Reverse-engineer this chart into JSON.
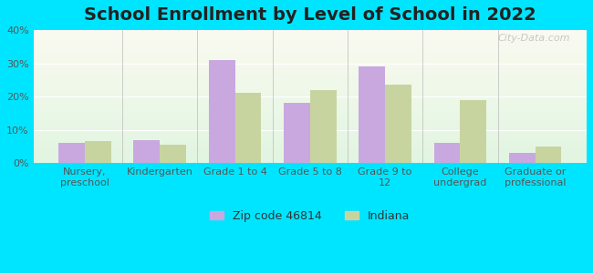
{
  "title": "School Enrollment by Level of School in 2022",
  "categories": [
    "Nursery,\npreschool",
    "Kindergarten",
    "Grade 1 to 4",
    "Grade 5 to 8",
    "Grade 9 to\n12",
    "College\nundergrad",
    "Graduate or\nprofessional"
  ],
  "zip_values": [
    6.0,
    7.0,
    31.0,
    18.0,
    29.0,
    6.0,
    3.0
  ],
  "indiana_values": [
    6.5,
    5.5,
    21.0,
    22.0,
    23.5,
    19.0,
    5.0
  ],
  "zip_color": "#c9a8e0",
  "indiana_color": "#c8d4a0",
  "background_outer": "#00e5ff",
  "ylim": [
    0,
    40
  ],
  "yticks": [
    0,
    10,
    20,
    30,
    40
  ],
  "ytick_labels": [
    "0%",
    "10%",
    "20%",
    "30%",
    "40%"
  ],
  "legend_zip_label": "Zip code 46814",
  "legend_indiana_label": "Indiana",
  "title_fontsize": 14,
  "tick_fontsize": 8,
  "legend_fontsize": 9,
  "bar_width": 0.35,
  "watermark": "City-Data.com"
}
